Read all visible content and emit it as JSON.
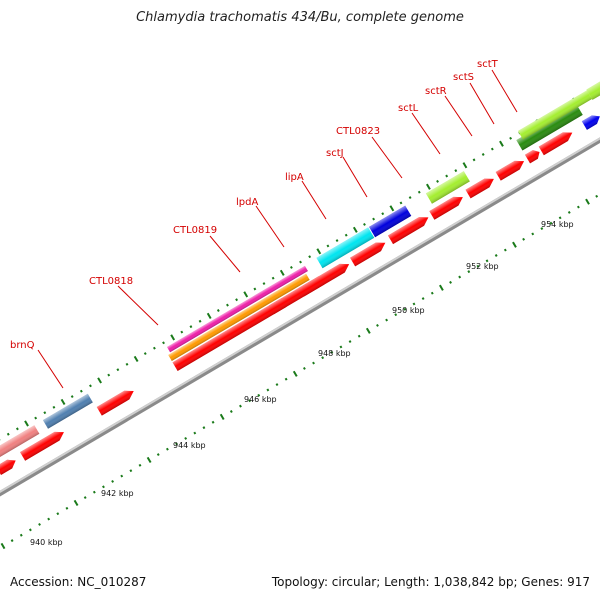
{
  "title": "Chlamydia trachomatis 434/Bu, complete genome",
  "footer": {
    "accession": "Accession: NC_010287",
    "summary": "Topology: circular; Length: 1,038,842 bp; Genes: 917"
  },
  "colors": {
    "cds": "#ff0000",
    "backbone": "#888888",
    "tick_major": "#1a7a1a",
    "tick_minor": "#1a7a1a",
    "label": "#d40000"
  },
  "axis_labels": [
    "940 kbp",
    "942 kbp",
    "944 kbp",
    "946 kbp",
    "948 kbp",
    "950 kbp",
    "952 kbp",
    "954 kbp"
  ],
  "gene_labels": [
    "brnQ",
    "CTL0818",
    "CTL0819",
    "lpdA",
    "lipA",
    "sctJ",
    "CTL0823",
    "sctL",
    "sctR",
    "sctS",
    "sctT"
  ]
}
